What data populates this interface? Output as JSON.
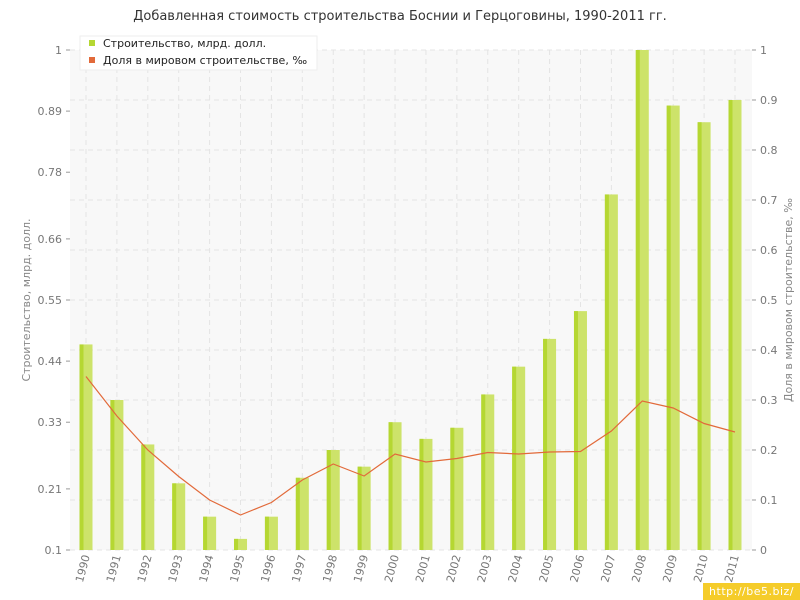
{
  "chart_data": {
    "type": "bar",
    "title": "Добавленная стоимость строительства Боснии и Герцоговины, 1990-2011 гг.",
    "ylabel": "Строительство, млрд. долл.",
    "y2label": "Доля в мировом строительстве, ‰",
    "categories": [
      "1990",
      "1991",
      "1992",
      "1993",
      "1994",
      "1995",
      "1996",
      "1997",
      "1998",
      "1999",
      "2000",
      "2001",
      "2002",
      "2003",
      "2004",
      "2005",
      "2006",
      "2007",
      "2008",
      "2009",
      "2010",
      "2011"
    ],
    "ylim": [
      0.1,
      1
    ],
    "y_ticks": [
      "0.1",
      "0.21",
      "0.33",
      "0.44",
      "0.55",
      "0.66",
      "0.78",
      "0.89",
      "1"
    ],
    "y2lim": [
      0,
      1
    ],
    "y2_ticks": [
      "0",
      "0.1",
      "0.2",
      "0.3",
      "0.4",
      "0.5",
      "0.6",
      "0.7",
      "0.8",
      "0.9",
      "1"
    ],
    "grid": true,
    "legend_position": "top-left",
    "series": [
      {
        "name": "Строительство, млрд. долл.",
        "type": "bar",
        "axis": "left",
        "color": "#b5d732",
        "values": [
          0.47,
          0.37,
          0.29,
          0.22,
          0.16,
          0.12,
          0.16,
          0.23,
          0.28,
          0.25,
          0.33,
          0.3,
          0.32,
          0.38,
          0.43,
          0.48,
          0.53,
          0.74,
          1.0,
          0.9,
          0.87,
          0.91
        ]
      },
      {
        "name": "Доля в мировом строительстве, ‰",
        "type": "line",
        "axis": "right",
        "color": "#e26a3a",
        "values": [
          0.347,
          0.268,
          0.2,
          0.147,
          0.1,
          0.07,
          0.095,
          0.14,
          0.172,
          0.148,
          0.192,
          0.176,
          0.183,
          0.195,
          0.192,
          0.196,
          0.197,
          0.238,
          0.298,
          0.284,
          0.253,
          0.236
        ]
      }
    ]
  },
  "watermark": "http://be5.biz/"
}
